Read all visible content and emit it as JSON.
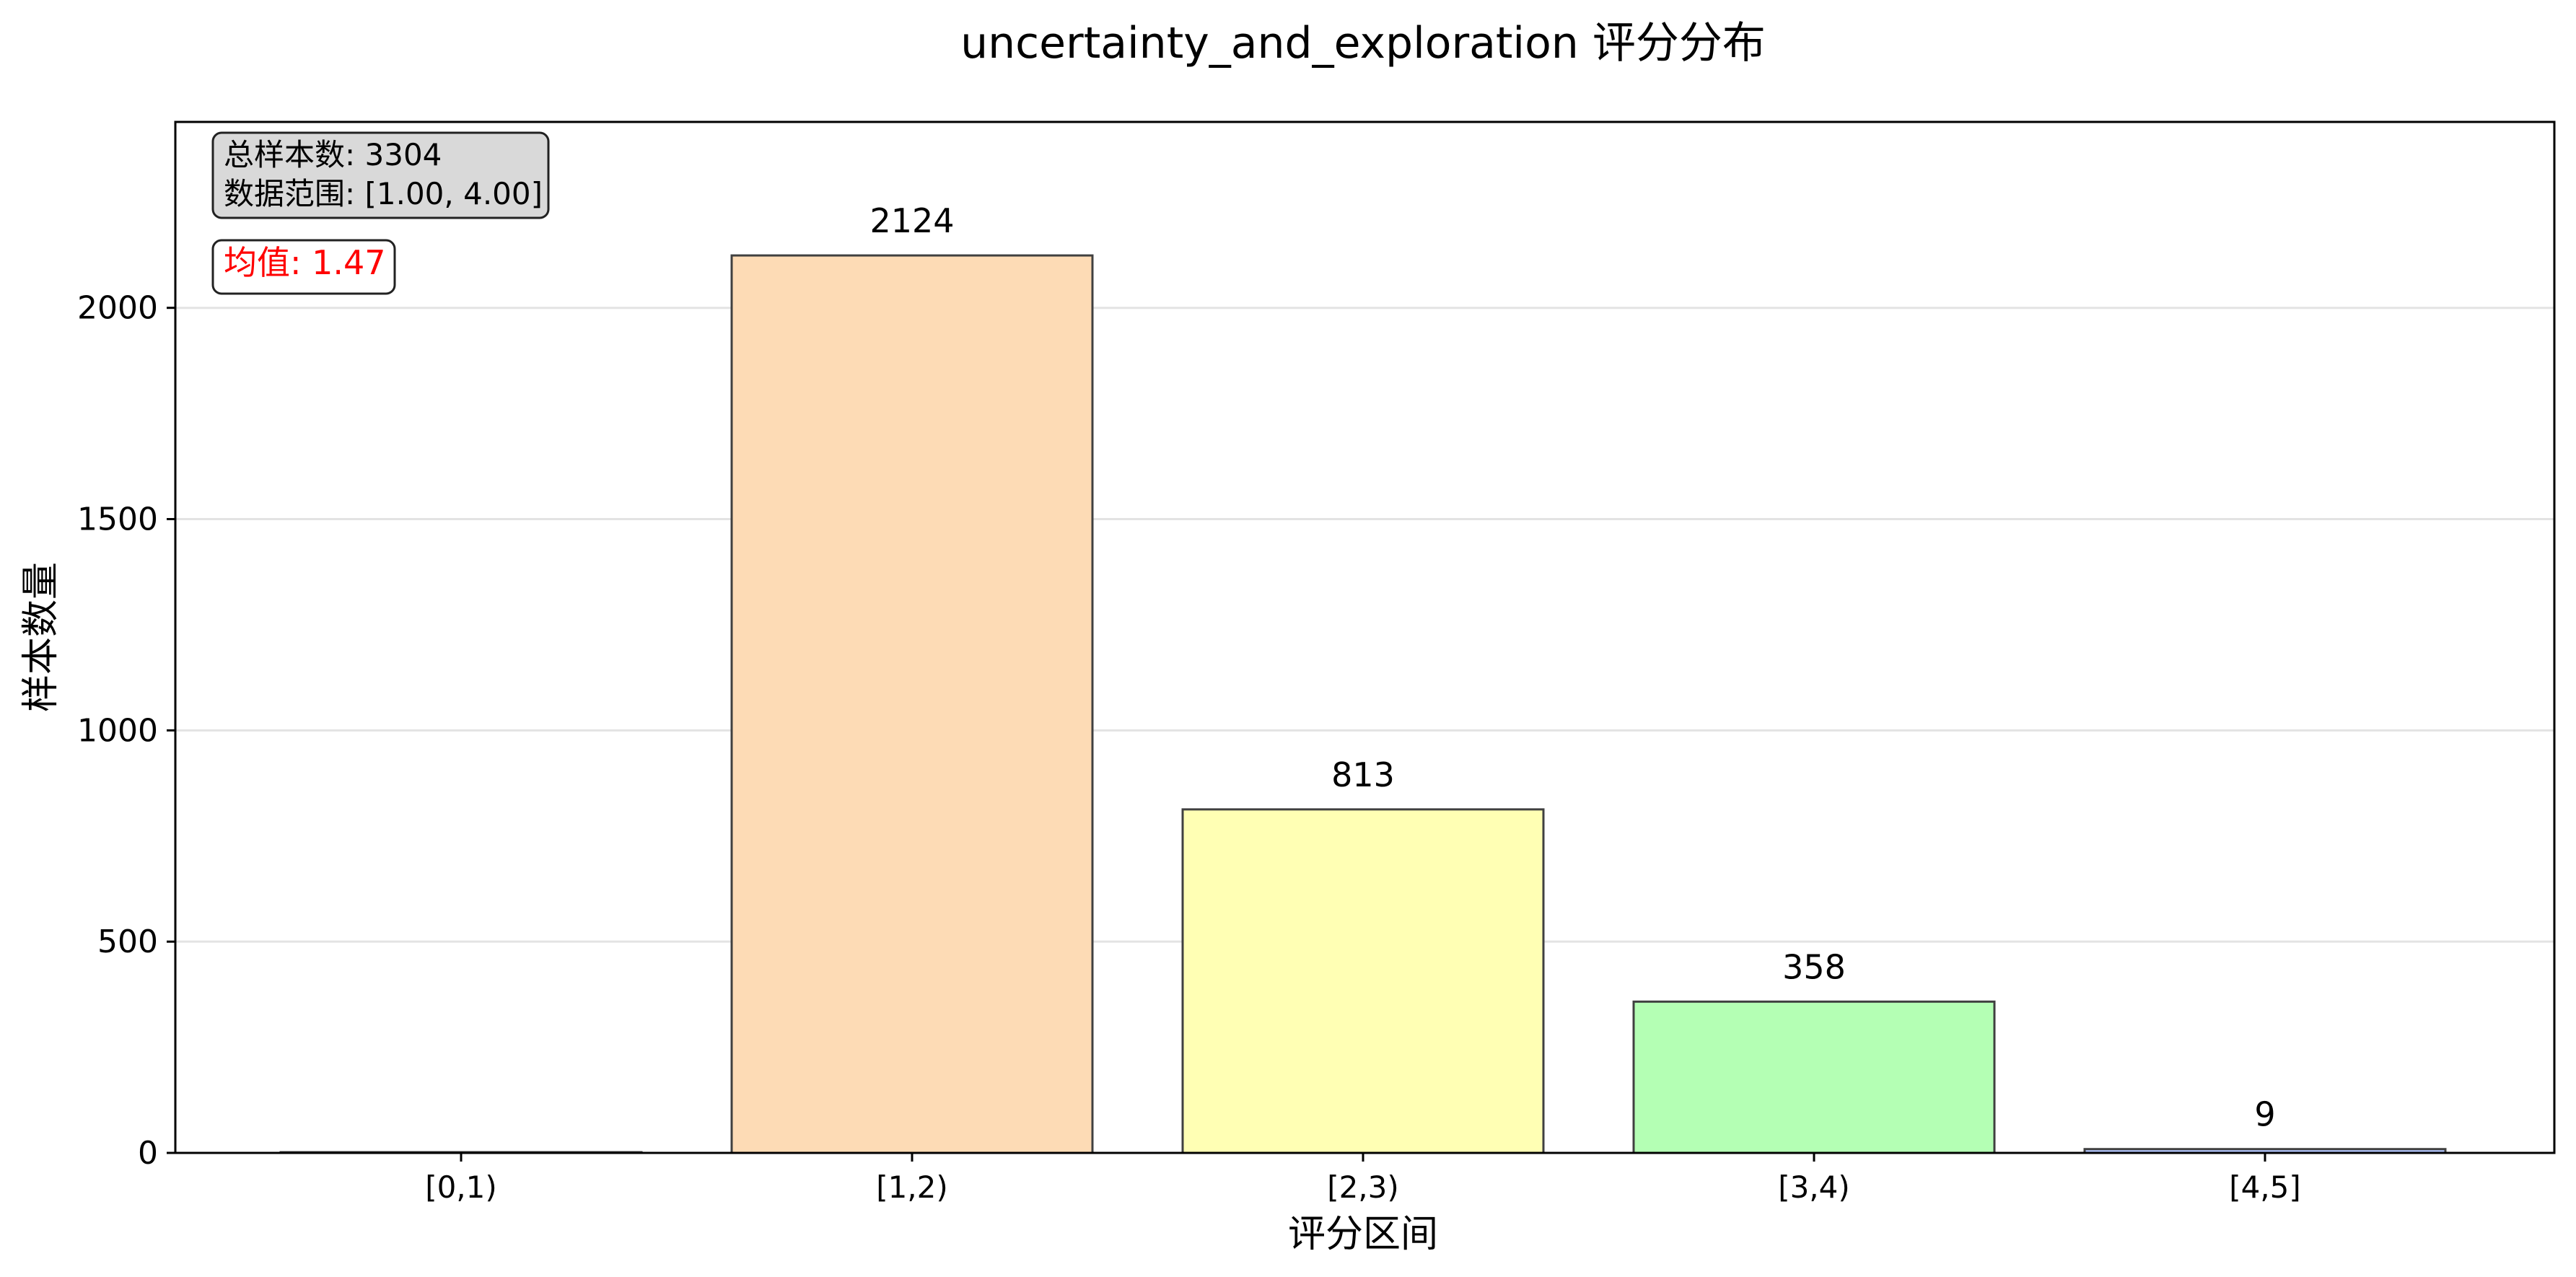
{
  "chart_data": {
    "type": "bar",
    "title": "uncertainty_and_exploration 评分分布",
    "xlabel": "评分区间",
    "ylabel": "样本数量",
    "categories": [
      "[0,1)",
      "[1,2)",
      "[2,3)",
      "[3,4)",
      "[4,5]"
    ],
    "values": [
      0,
      2124,
      813,
      358,
      9
    ],
    "value_labels": [
      "",
      "2124",
      "813",
      "358",
      "9"
    ],
    "bar_colors": [
      "#ffd1a8",
      "#fddbb5",
      "#ffffb4",
      "#b4ffb4",
      "#b4c8ff"
    ],
    "bar_edge_color": "#404040",
    "ylim": [
      0,
      2440
    ],
    "yticks": [
      0,
      500,
      1000,
      1500,
      2000
    ],
    "ytick_labels": [
      "0",
      "500",
      "1000",
      "1500",
      "2000"
    ],
    "grid": "y",
    "stats_box": {
      "line1": "总样本数: 3304",
      "line2": "数据范围: [1.00, 4.00]"
    },
    "mean_box": {
      "text": "均值: 1.47",
      "color": "#ff0000"
    }
  }
}
